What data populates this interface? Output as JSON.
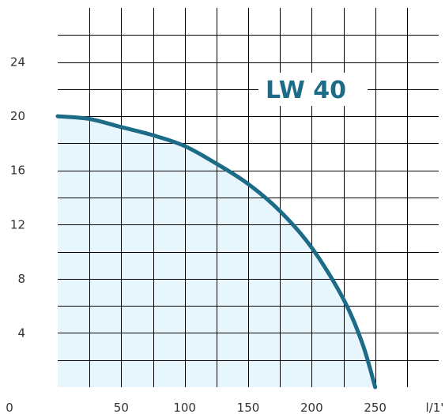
{
  "chart_data": {
    "type": "area",
    "title": "LW 40",
    "x_unit": "l/1'",
    "y_origin_label": "0",
    "xlim": [
      0,
      300
    ],
    "ylim": [
      0,
      28
    ],
    "x_ticks": [
      50,
      100,
      150,
      200,
      250
    ],
    "y_ticks": [
      4,
      8,
      12,
      16,
      20,
      24
    ],
    "grid": true,
    "series": [
      {
        "x": [
          0,
          25,
          50,
          75,
          100,
          125,
          150,
          175,
          200,
          225,
          240,
          250
        ],
        "y": [
          20,
          19.8,
          19.2,
          18.6,
          17.8,
          16.5,
          15.0,
          13.0,
          10.3,
          6.5,
          3.2,
          0
        ]
      }
    ]
  },
  "colors": {
    "curve": "#1c6b87",
    "fill": "#e7f6fd",
    "grid": "#000000",
    "title": "#1c6b87"
  }
}
